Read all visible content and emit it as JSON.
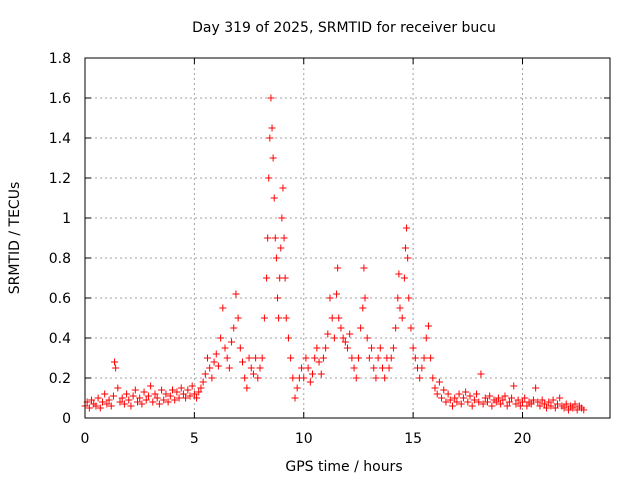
{
  "chart_data": {
    "type": "scatter",
    "title": "Day 319 of 2025, SRMTID for receiver bucu",
    "xlabel": "GPS time / hours",
    "ylabel": "SRMTID / TECUs",
    "xlim": [
      0,
      24
    ],
    "ylim": [
      0,
      1.8
    ],
    "xticks": [
      0,
      5,
      10,
      15,
      20
    ],
    "xtick_labels": [
      "0",
      "5",
      "10",
      "15",
      "20"
    ],
    "yticks": [
      0,
      0.2,
      0.4,
      0.6,
      0.8,
      1.0,
      1.2,
      1.4,
      1.6,
      1.8
    ],
    "ytick_labels": [
      "0",
      "0.2",
      "0.4",
      "0.6",
      "0.8",
      "1",
      "1.2",
      "1.4",
      "1.6",
      "1.8"
    ],
    "grid": true,
    "marker": "+",
    "color": "#ff0000",
    "series": [
      {
        "name": "SRMTID",
        "points": [
          [
            0.0,
            0.06
          ],
          [
            0.1,
            0.08
          ],
          [
            0.2,
            0.05
          ],
          [
            0.3,
            0.09
          ],
          [
            0.4,
            0.07
          ],
          [
            0.5,
            0.06
          ],
          [
            0.6,
            0.1
          ],
          [
            0.7,
            0.05
          ],
          [
            0.8,
            0.08
          ],
          [
            0.9,
            0.12
          ],
          [
            1.0,
            0.07
          ],
          [
            1.1,
            0.09
          ],
          [
            1.2,
            0.06
          ],
          [
            1.3,
            0.11
          ],
          [
            1.35,
            0.28
          ],
          [
            1.4,
            0.25
          ],
          [
            1.5,
            0.15
          ],
          [
            1.6,
            0.08
          ],
          [
            1.7,
            0.1
          ],
          [
            1.8,
            0.07
          ],
          [
            1.9,
            0.12
          ],
          [
            2.0,
            0.09
          ],
          [
            2.1,
            0.06
          ],
          [
            2.2,
            0.11
          ],
          [
            2.3,
            0.14
          ],
          [
            2.4,
            0.08
          ],
          [
            2.5,
            0.1
          ],
          [
            2.6,
            0.07
          ],
          [
            2.7,
            0.13
          ],
          [
            2.8,
            0.09
          ],
          [
            2.9,
            0.11
          ],
          [
            3.0,
            0.16
          ],
          [
            3.1,
            0.08
          ],
          [
            3.2,
            0.12
          ],
          [
            3.3,
            0.1
          ],
          [
            3.4,
            0.07
          ],
          [
            3.5,
            0.14
          ],
          [
            3.6,
            0.09
          ],
          [
            3.7,
            0.12
          ],
          [
            3.8,
            0.08
          ],
          [
            3.9,
            0.11
          ],
          [
            4.0,
            0.14
          ],
          [
            4.1,
            0.09
          ],
          [
            4.2,
            0.13
          ],
          [
            4.3,
            0.1
          ],
          [
            4.4,
            0.15
          ],
          [
            4.5,
            0.12
          ],
          [
            4.6,
            0.1
          ],
          [
            4.7,
            0.14
          ],
          [
            4.8,
            0.11
          ],
          [
            4.9,
            0.16
          ],
          [
            5.0,
            0.12
          ],
          [
            5.1,
            0.1
          ],
          [
            5.2,
            0.13
          ],
          [
            5.3,
            0.15
          ],
          [
            5.4,
            0.18
          ],
          [
            5.5,
            0.22
          ],
          [
            5.6,
            0.3
          ],
          [
            5.7,
            0.25
          ],
          [
            5.8,
            0.2
          ],
          [
            5.9,
            0.28
          ],
          [
            6.0,
            0.32
          ],
          [
            6.1,
            0.26
          ],
          [
            6.2,
            0.4
          ],
          [
            6.3,
            0.55
          ],
          [
            6.4,
            0.35
          ],
          [
            6.5,
            0.3
          ],
          [
            6.6,
            0.25
          ],
          [
            6.7,
            0.38
          ],
          [
            6.8,
            0.45
          ],
          [
            6.9,
            0.62
          ],
          [
            7.0,
            0.5
          ],
          [
            7.1,
            0.35
          ],
          [
            7.2,
            0.28
          ],
          [
            7.3,
            0.2
          ],
          [
            7.4,
            0.15
          ],
          [
            7.5,
            0.3
          ],
          [
            7.6,
            0.25
          ],
          [
            7.7,
            0.22
          ],
          [
            7.8,
            0.3
          ],
          [
            7.9,
            0.2
          ],
          [
            8.0,
            0.25
          ],
          [
            8.1,
            0.3
          ],
          [
            8.2,
            0.5
          ],
          [
            8.3,
            0.7
          ],
          [
            8.35,
            0.9
          ],
          [
            8.4,
            1.2
          ],
          [
            8.45,
            1.4
          ],
          [
            8.5,
            1.6
          ],
          [
            8.55,
            1.45
          ],
          [
            8.6,
            1.3
          ],
          [
            8.65,
            1.1
          ],
          [
            8.7,
            0.9
          ],
          [
            8.75,
            0.8
          ],
          [
            8.8,
            0.6
          ],
          [
            8.85,
            0.5
          ],
          [
            8.9,
            0.7
          ],
          [
            8.95,
            0.85
          ],
          [
            9.0,
            1.0
          ],
          [
            9.05,
            1.15
          ],
          [
            9.1,
            0.9
          ],
          [
            9.15,
            0.7
          ],
          [
            9.2,
            0.5
          ],
          [
            9.3,
            0.4
          ],
          [
            9.4,
            0.3
          ],
          [
            9.5,
            0.2
          ],
          [
            9.6,
            0.1
          ],
          [
            9.7,
            0.15
          ],
          [
            9.8,
            0.2
          ],
          [
            9.9,
            0.25
          ],
          [
            10.0,
            0.2
          ],
          [
            10.1,
            0.3
          ],
          [
            10.2,
            0.25
          ],
          [
            10.3,
            0.18
          ],
          [
            10.4,
            0.22
          ],
          [
            10.5,
            0.3
          ],
          [
            10.6,
            0.35
          ],
          [
            10.7,
            0.28
          ],
          [
            10.8,
            0.22
          ],
          [
            10.9,
            0.3
          ],
          [
            11.0,
            0.35
          ],
          [
            11.1,
            0.42
          ],
          [
            11.2,
            0.6
          ],
          [
            11.3,
            0.5
          ],
          [
            11.4,
            0.4
          ],
          [
            11.5,
            0.62
          ],
          [
            11.55,
            0.75
          ],
          [
            11.6,
            0.5
          ],
          [
            11.7,
            0.45
          ],
          [
            11.8,
            0.4
          ],
          [
            11.9,
            0.38
          ],
          [
            12.0,
            0.35
          ],
          [
            12.1,
            0.42
          ],
          [
            12.2,
            0.3
          ],
          [
            12.3,
            0.25
          ],
          [
            12.4,
            0.2
          ],
          [
            12.5,
            0.3
          ],
          [
            12.6,
            0.45
          ],
          [
            12.7,
            0.55
          ],
          [
            12.75,
            0.75
          ],
          [
            12.8,
            0.6
          ],
          [
            12.9,
            0.4
          ],
          [
            13.0,
            0.3
          ],
          [
            13.1,
            0.35
          ],
          [
            13.2,
            0.25
          ],
          [
            13.3,
            0.2
          ],
          [
            13.4,
            0.3
          ],
          [
            13.5,
            0.35
          ],
          [
            13.6,
            0.25
          ],
          [
            13.7,
            0.2
          ],
          [
            13.8,
            0.3
          ],
          [
            13.9,
            0.25
          ],
          [
            14.0,
            0.3
          ],
          [
            14.1,
            0.35
          ],
          [
            14.2,
            0.45
          ],
          [
            14.3,
            0.6
          ],
          [
            14.35,
            0.72
          ],
          [
            14.4,
            0.55
          ],
          [
            14.5,
            0.5
          ],
          [
            14.6,
            0.7
          ],
          [
            14.65,
            0.85
          ],
          [
            14.7,
            0.95
          ],
          [
            14.75,
            0.8
          ],
          [
            14.8,
            0.6
          ],
          [
            14.9,
            0.45
          ],
          [
            15.0,
            0.35
          ],
          [
            15.1,
            0.3
          ],
          [
            15.2,
            0.25
          ],
          [
            15.3,
            0.2
          ],
          [
            15.4,
            0.25
          ],
          [
            15.5,
            0.3
          ],
          [
            15.6,
            0.4
          ],
          [
            15.7,
            0.46
          ],
          [
            15.8,
            0.3
          ],
          [
            15.9,
            0.2
          ],
          [
            16.0,
            0.15
          ],
          [
            16.1,
            0.12
          ],
          [
            16.2,
            0.18
          ],
          [
            16.3,
            0.1
          ],
          [
            16.4,
            0.14
          ],
          [
            16.5,
            0.08
          ],
          [
            16.6,
            0.12
          ],
          [
            16.7,
            0.09
          ],
          [
            16.8,
            0.06
          ],
          [
            16.9,
            0.1
          ],
          [
            17.0,
            0.08
          ],
          [
            17.1,
            0.12
          ],
          [
            17.2,
            0.07
          ],
          [
            17.3,
            0.1
          ],
          [
            17.4,
            0.13
          ],
          [
            17.5,
            0.08
          ],
          [
            17.6,
            0.11
          ],
          [
            17.7,
            0.06
          ],
          [
            17.8,
            0.09
          ],
          [
            17.9,
            0.12
          ],
          [
            18.0,
            0.08
          ],
          [
            18.1,
            0.22
          ],
          [
            18.2,
            0.07
          ],
          [
            18.3,
            0.1
          ],
          [
            18.4,
            0.08
          ],
          [
            18.5,
            0.11
          ],
          [
            18.6,
            0.06
          ],
          [
            18.7,
            0.09
          ],
          [
            18.8,
            0.08
          ],
          [
            18.9,
            0.1
          ],
          [
            19.0,
            0.07
          ],
          [
            19.1,
            0.09
          ],
          [
            19.2,
            0.11
          ],
          [
            19.3,
            0.06
          ],
          [
            19.4,
            0.08
          ],
          [
            19.5,
            0.1
          ],
          [
            19.6,
            0.16
          ],
          [
            19.7,
            0.07
          ],
          [
            19.8,
            0.09
          ],
          [
            19.9,
            0.06
          ],
          [
            20.0,
            0.08
          ],
          [
            20.1,
            0.1
          ],
          [
            20.2,
            0.06
          ],
          [
            20.3,
            0.08
          ],
          [
            20.4,
            0.07
          ],
          [
            20.5,
            0.09
          ],
          [
            20.6,
            0.15
          ],
          [
            20.7,
            0.08
          ],
          [
            20.8,
            0.06
          ],
          [
            20.9,
            0.09
          ],
          [
            21.0,
            0.07
          ],
          [
            21.1,
            0.05
          ],
          [
            21.2,
            0.08
          ],
          [
            21.3,
            0.06
          ],
          [
            21.4,
            0.09
          ],
          [
            21.5,
            0.05
          ],
          [
            21.6,
            0.07
          ],
          [
            21.7,
            0.1
          ],
          [
            21.8,
            0.06
          ],
          [
            21.9,
            0.05
          ],
          [
            22.0,
            0.07
          ],
          [
            22.1,
            0.04
          ],
          [
            22.2,
            0.06
          ],
          [
            22.3,
            0.05
          ],
          [
            22.4,
            0.07
          ],
          [
            22.5,
            0.04
          ],
          [
            22.6,
            0.06
          ],
          [
            22.7,
            0.05
          ],
          [
            22.8,
            0.04
          ]
        ]
      }
    ]
  }
}
